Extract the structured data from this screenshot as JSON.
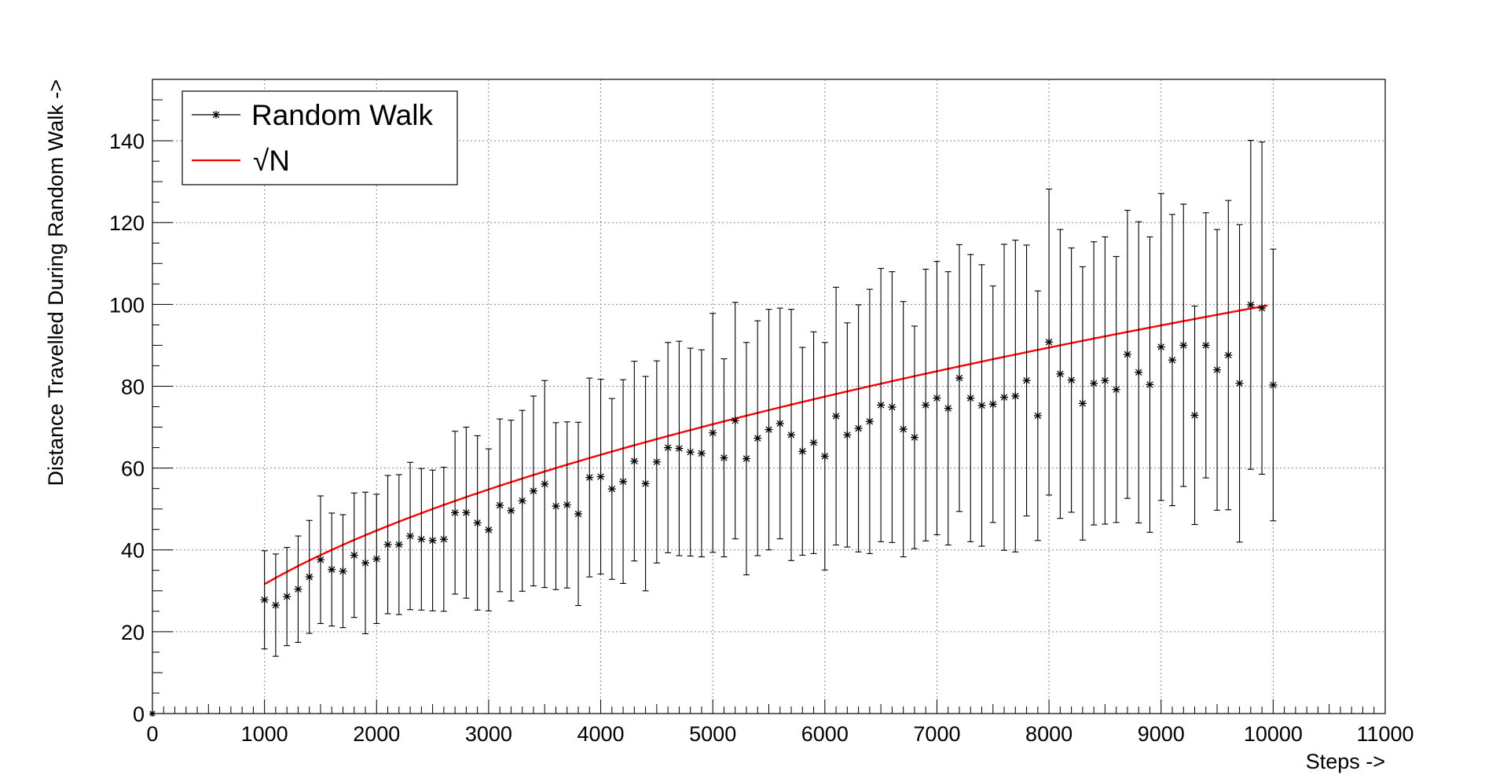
{
  "chart_data": {
    "type": "scatter",
    "title": "",
    "xlabel": "Steps ->",
    "ylabel": "Distance Travelled During Random Walk ->",
    "xlim": [
      0,
      11000
    ],
    "ylim": [
      0,
      155
    ],
    "xticks": [
      0,
      1000,
      2000,
      3000,
      4000,
      5000,
      6000,
      7000,
      8000,
      9000,
      10000,
      11000
    ],
    "yticks": [
      0,
      20,
      40,
      60,
      80,
      100,
      120,
      140
    ],
    "grid": true,
    "legend_position": "top-left",
    "series": [
      {
        "name": "Random Walk",
        "style": "points with error bars",
        "marker": "star",
        "color": "#000000",
        "x": [
          1000,
          1100,
          1200,
          1300,
          1400,
          1500,
          1600,
          1700,
          1800,
          1900,
          2000,
          2100,
          2200,
          2300,
          2400,
          2500,
          2600,
          2700,
          2800,
          2900,
          3000,
          3100,
          3200,
          3300,
          3400,
          3500,
          3600,
          3700,
          3800,
          3900,
          4000,
          4100,
          4200,
          4300,
          4400,
          4500,
          4600,
          4700,
          4800,
          4900,
          5000,
          5100,
          5200,
          5300,
          5400,
          5500,
          5600,
          5700,
          5800,
          5900,
          6000,
          6100,
          6200,
          6300,
          6400,
          6500,
          6600,
          6700,
          6800,
          6900,
          7000,
          7100,
          7200,
          7300,
          7400,
          7500,
          7600,
          7700,
          7800,
          7900,
          8000,
          8100,
          8200,
          8300,
          8400,
          8500,
          8600,
          8700,
          8800,
          8900,
          9000,
          9100,
          9200,
          9300,
          9400,
          9500,
          9600,
          9700,
          9800,
          9900,
          10000
        ],
        "y": [
          27.8,
          26.5,
          28.6,
          30.4,
          33.4,
          37.6,
          35.2,
          34.8,
          38.7,
          36.8,
          37.8,
          41.3,
          41.3,
          43.4,
          42.6,
          42.3,
          42.6,
          49.1,
          49.1,
          46.6,
          44.9,
          50.9,
          49.6,
          52.0,
          54.4,
          56.1,
          50.7,
          51.0,
          48.8,
          57.7,
          57.9,
          54.9,
          56.7,
          61.7,
          56.2,
          61.5,
          65.0,
          64.8,
          63.9,
          63.6,
          68.6,
          62.5,
          71.6,
          62.3,
          67.3,
          69.4,
          70.9,
          68.1,
          64.1,
          66.2,
          62.9,
          72.7,
          68.1,
          69.7,
          71.4,
          75.4,
          74.9,
          69.5,
          67.5,
          75.4,
          77.1,
          74.6,
          82.0,
          77.1,
          75.3,
          75.6,
          77.3,
          77.6,
          81.4,
          72.8,
          90.8,
          83.0,
          81.5,
          75.8,
          80.7,
          81.4,
          79.2,
          87.8,
          83.4,
          80.4,
          89.6,
          86.4,
          90.0,
          72.9,
          90.0,
          84.0,
          87.6,
          80.7,
          99.9,
          99.1,
          80.3
        ],
        "yerr": [
          12,
          12.5,
          12,
          13,
          13.8,
          15.6,
          13.8,
          13.8,
          15.2,
          17.3,
          15.8,
          16.9,
          17.1,
          18,
          17.3,
          17.2,
          17.6,
          19.9,
          20.9,
          21.3,
          19.8,
          21.1,
          22.1,
          22.1,
          23.2,
          25.3,
          20.4,
          20.3,
          22.4,
          24.3,
          23.8,
          22.1,
          24.9,
          24.4,
          26.2,
          24.7,
          25.7,
          26.2,
          25.4,
          25.3,
          29.2,
          24.2,
          28.9,
          28.4,
          28.7,
          29.4,
          28.2,
          30.7,
          25.4,
          27.1,
          27.8,
          31.5,
          27.4,
          30.2,
          32.3,
          33.4,
          33.1,
          31.2,
          27.2,
          33.2,
          33.4,
          33.4,
          32.6,
          35.1,
          34.4,
          28.9,
          37.4,
          38.1,
          33.1,
          30.5,
          37.4,
          35.3,
          32.3,
          33.4,
          34.6,
          35.1,
          32.5,
          35.2,
          36.8,
          36.1,
          37.5,
          35.6,
          34.5,
          26.7,
          32.4,
          34.3,
          37.8,
          38.8,
          40.2,
          40.6,
          33.2
        ]
      },
      {
        "name": "√N",
        "style": "line",
        "color": "#ff0000",
        "function": "sqrt(x)",
        "x_range": [
          1000,
          9950
        ]
      }
    ]
  }
}
